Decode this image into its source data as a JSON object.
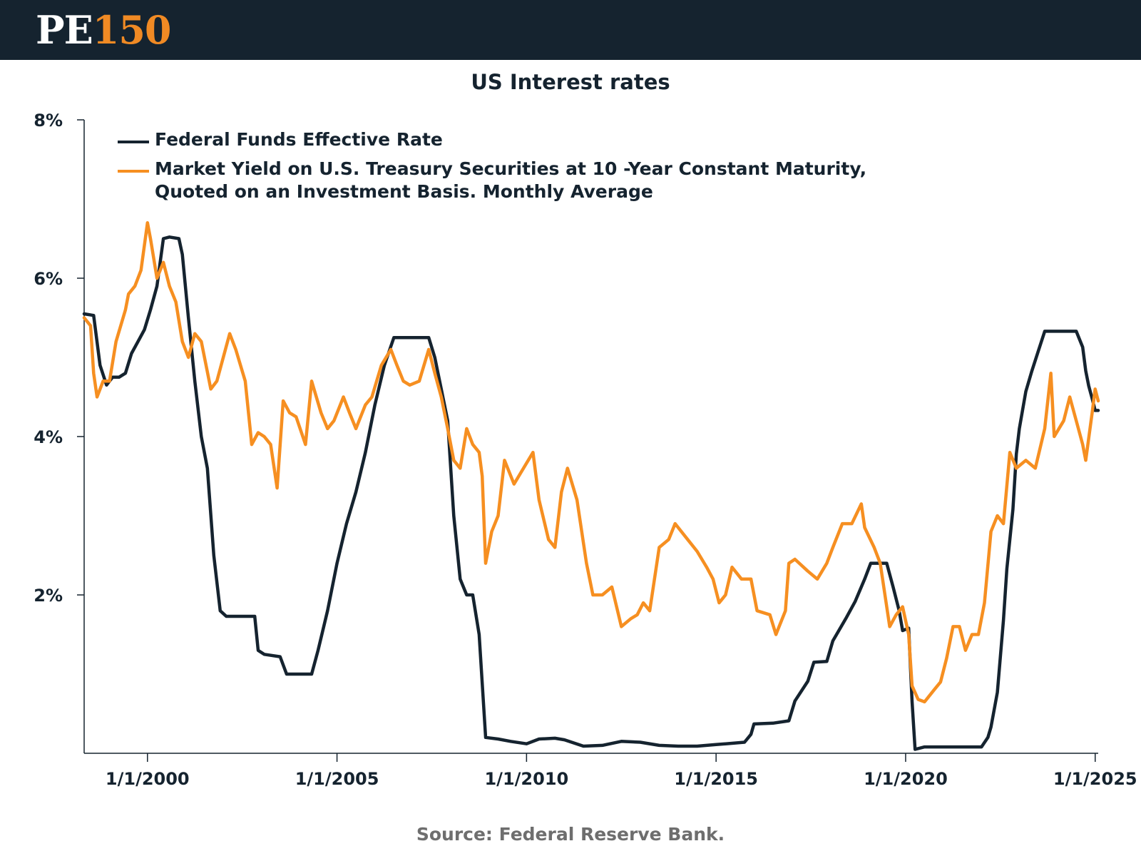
{
  "header": {
    "logo_pe": "PE",
    "logo_num": "150"
  },
  "source": "Source: Federal Reserve Bank.",
  "colors": {
    "header_bg": "#15232f",
    "fed_funds": "#15232f",
    "treasury_10y": "#f68f21"
  },
  "chart_data": {
    "type": "line",
    "title": "US Interest rates",
    "xlabel": "",
    "ylabel": "",
    "xlim": [
      1998.33,
      2025.08
    ],
    "ylim": [
      0,
      8
    ],
    "y_ticks": [
      2,
      4,
      6,
      8
    ],
    "y_tick_labels": [
      "2%",
      "4%",
      "6%",
      "8%"
    ],
    "x_ticks": [
      2000,
      2005,
      2010,
      2015,
      2020,
      2025
    ],
    "x_tick_labels": [
      "1/1/2000",
      "1/1/2005",
      "1/1/2010",
      "1/1/2015",
      "1/1/2020",
      "1/1/2025"
    ],
    "grid": false,
    "legend_position": "top-left",
    "series": [
      {
        "name": "Federal Funds Effective Rate",
        "color": "#15232f",
        "points": [
          [
            1998.33,
            5.55
          ],
          [
            1998.58,
            5.53
          ],
          [
            1998.75,
            4.9
          ],
          [
            1998.92,
            4.65
          ],
          [
            1999.08,
            4.75
          ],
          [
            1999.25,
            4.75
          ],
          [
            1999.42,
            4.8
          ],
          [
            1999.58,
            5.05
          ],
          [
            1999.75,
            5.2
          ],
          [
            1999.92,
            5.35
          ],
          [
            2000.08,
            5.6
          ],
          [
            2000.25,
            5.9
          ],
          [
            2000.42,
            6.5
          ],
          [
            2000.58,
            6.52
          ],
          [
            2000.83,
            6.5
          ],
          [
            2000.92,
            6.3
          ],
          [
            2001.08,
            5.5
          ],
          [
            2001.25,
            4.7
          ],
          [
            2001.42,
            4.0
          ],
          [
            2001.58,
            3.6
          ],
          [
            2001.75,
            2.5
          ],
          [
            2001.92,
            1.8
          ],
          [
            2002.08,
            1.73
          ],
          [
            2002.5,
            1.73
          ],
          [
            2002.83,
            1.73
          ],
          [
            2002.92,
            1.3
          ],
          [
            2003.08,
            1.25
          ],
          [
            2003.5,
            1.22
          ],
          [
            2003.67,
            1.0
          ],
          [
            2004.0,
            1.0
          ],
          [
            2004.33,
            1.0
          ],
          [
            2004.5,
            1.3
          ],
          [
            2004.75,
            1.8
          ],
          [
            2005.0,
            2.4
          ],
          [
            2005.25,
            2.9
          ],
          [
            2005.5,
            3.3
          ],
          [
            2005.75,
            3.8
          ],
          [
            2006.0,
            4.4
          ],
          [
            2006.25,
            4.9
          ],
          [
            2006.5,
            5.25
          ],
          [
            2006.75,
            5.25
          ],
          [
            2007.0,
            5.25
          ],
          [
            2007.42,
            5.25
          ],
          [
            2007.58,
            5.0
          ],
          [
            2007.75,
            4.6
          ],
          [
            2007.92,
            4.2
          ],
          [
            2008.08,
            3.0
          ],
          [
            2008.25,
            2.2
          ],
          [
            2008.42,
            2.0
          ],
          [
            2008.58,
            2.0
          ],
          [
            2008.75,
            1.5
          ],
          [
            2008.92,
            0.2
          ],
          [
            2009.25,
            0.18
          ],
          [
            2009.58,
            0.15
          ],
          [
            2010.0,
            0.12
          ],
          [
            2010.33,
            0.18
          ],
          [
            2010.75,
            0.19
          ],
          [
            2011.0,
            0.17
          ],
          [
            2011.5,
            0.09
          ],
          [
            2012.0,
            0.1
          ],
          [
            2012.5,
            0.15
          ],
          [
            2013.0,
            0.14
          ],
          [
            2013.5,
            0.1
          ],
          [
            2014.0,
            0.09
          ],
          [
            2014.5,
            0.09
          ],
          [
            2015.0,
            0.11
          ],
          [
            2015.75,
            0.14
          ],
          [
            2015.92,
            0.24
          ],
          [
            2016.0,
            0.37
          ],
          [
            2016.5,
            0.38
          ],
          [
            2016.92,
            0.41
          ],
          [
            2017.08,
            0.66
          ],
          [
            2017.42,
            0.91
          ],
          [
            2017.58,
            1.15
          ],
          [
            2017.92,
            1.16
          ],
          [
            2018.08,
            1.42
          ],
          [
            2018.42,
            1.7
          ],
          [
            2018.67,
            1.92
          ],
          [
            2018.92,
            2.2
          ],
          [
            2019.08,
            2.4
          ],
          [
            2019.5,
            2.4
          ],
          [
            2019.67,
            2.1
          ],
          [
            2019.83,
            1.8
          ],
          [
            2019.92,
            1.55
          ],
          [
            2020.08,
            1.58
          ],
          [
            2020.17,
            0.65
          ],
          [
            2020.25,
            0.05
          ],
          [
            2020.5,
            0.08
          ],
          [
            2021.0,
            0.08
          ],
          [
            2021.5,
            0.08
          ],
          [
            2022.0,
            0.08
          ],
          [
            2022.17,
            0.2
          ],
          [
            2022.25,
            0.33
          ],
          [
            2022.42,
            0.77
          ],
          [
            2022.58,
            1.68
          ],
          [
            2022.67,
            2.33
          ],
          [
            2022.83,
            3.08
          ],
          [
            2022.92,
            3.78
          ],
          [
            2023.0,
            4.1
          ],
          [
            2023.17,
            4.57
          ],
          [
            2023.33,
            4.83
          ],
          [
            2023.5,
            5.08
          ],
          [
            2023.67,
            5.33
          ],
          [
            2024.0,
            5.33
          ],
          [
            2024.5,
            5.33
          ],
          [
            2024.67,
            5.13
          ],
          [
            2024.75,
            4.83
          ],
          [
            2024.83,
            4.64
          ],
          [
            2024.92,
            4.48
          ],
          [
            2025.0,
            4.33
          ],
          [
            2025.08,
            4.33
          ]
        ]
      },
      {
        "name": "Market Yield on U.S. Treasury Securities at 10 -Year Constant Maturity, Quoted on an Investment Basis. Monthly Average",
        "color": "#f68f21",
        "points": [
          [
            1998.33,
            5.5
          ],
          [
            1998.5,
            5.4
          ],
          [
            1998.58,
            4.8
          ],
          [
            1998.67,
            4.5
          ],
          [
            1998.83,
            4.7
          ],
          [
            1999.0,
            4.7
          ],
          [
            1999.17,
            5.2
          ],
          [
            1999.42,
            5.6
          ],
          [
            1999.5,
            5.8
          ],
          [
            1999.67,
            5.9
          ],
          [
            1999.83,
            6.1
          ],
          [
            2000.0,
            6.7
          ],
          [
            2000.08,
            6.5
          ],
          [
            2000.25,
            6.0
          ],
          [
            2000.42,
            6.2
          ],
          [
            2000.58,
            5.9
          ],
          [
            2000.75,
            5.7
          ],
          [
            2000.92,
            5.2
          ],
          [
            2001.08,
            5.0
          ],
          [
            2001.25,
            5.3
          ],
          [
            2001.42,
            5.2
          ],
          [
            2001.67,
            4.6
          ],
          [
            2001.83,
            4.7
          ],
          [
            2002.0,
            5.0
          ],
          [
            2002.17,
            5.3
          ],
          [
            2002.33,
            5.1
          ],
          [
            2002.58,
            4.7
          ],
          [
            2002.75,
            3.9
          ],
          [
            2002.92,
            4.05
          ],
          [
            2003.08,
            4.0
          ],
          [
            2003.25,
            3.9
          ],
          [
            2003.42,
            3.35
          ],
          [
            2003.58,
            4.45
          ],
          [
            2003.75,
            4.3
          ],
          [
            2003.92,
            4.25
          ],
          [
            2004.17,
            3.9
          ],
          [
            2004.33,
            4.7
          ],
          [
            2004.58,
            4.3
          ],
          [
            2004.75,
            4.1
          ],
          [
            2004.92,
            4.2
          ],
          [
            2005.17,
            4.5
          ],
          [
            2005.33,
            4.3
          ],
          [
            2005.5,
            4.1
          ],
          [
            2005.75,
            4.4
          ],
          [
            2005.92,
            4.5
          ],
          [
            2006.17,
            4.9
          ],
          [
            2006.42,
            5.1
          ],
          [
            2006.58,
            4.9
          ],
          [
            2006.75,
            4.7
          ],
          [
            2006.92,
            4.65
          ],
          [
            2007.17,
            4.7
          ],
          [
            2007.42,
            5.1
          ],
          [
            2007.58,
            4.8
          ],
          [
            2007.75,
            4.5
          ],
          [
            2007.92,
            4.1
          ],
          [
            2008.08,
            3.7
          ],
          [
            2008.25,
            3.6
          ],
          [
            2008.42,
            4.1
          ],
          [
            2008.58,
            3.9
          ],
          [
            2008.75,
            3.8
          ],
          [
            2008.83,
            3.5
          ],
          [
            2008.92,
            2.4
          ],
          [
            2009.08,
            2.8
          ],
          [
            2009.25,
            3.0
          ],
          [
            2009.42,
            3.7
          ],
          [
            2009.67,
            3.4
          ],
          [
            2009.92,
            3.6
          ],
          [
            2010.17,
            3.8
          ],
          [
            2010.33,
            3.2
          ],
          [
            2010.58,
            2.7
          ],
          [
            2010.75,
            2.6
          ],
          [
            2010.92,
            3.3
          ],
          [
            2011.08,
            3.6
          ],
          [
            2011.33,
            3.2
          ],
          [
            2011.58,
            2.4
          ],
          [
            2011.75,
            2.0
          ],
          [
            2012.0,
            2.0
          ],
          [
            2012.25,
            2.1
          ],
          [
            2012.5,
            1.6
          ],
          [
            2012.75,
            1.7
          ],
          [
            2012.92,
            1.75
          ],
          [
            2013.08,
            1.9
          ],
          [
            2013.25,
            1.8
          ],
          [
            2013.5,
            2.6
          ],
          [
            2013.75,
            2.7
          ],
          [
            2013.92,
            2.9
          ],
          [
            2014.25,
            2.7
          ],
          [
            2014.5,
            2.55
          ],
          [
            2014.75,
            2.35
          ],
          [
            2014.92,
            2.2
          ],
          [
            2015.08,
            1.9
          ],
          [
            2015.25,
            2.0
          ],
          [
            2015.42,
            2.35
          ],
          [
            2015.67,
            2.2
          ],
          [
            2015.92,
            2.2
          ],
          [
            2016.08,
            1.8
          ],
          [
            2016.42,
            1.75
          ],
          [
            2016.58,
            1.5
          ],
          [
            2016.83,
            1.8
          ],
          [
            2016.92,
            2.4
          ],
          [
            2017.08,
            2.45
          ],
          [
            2017.42,
            2.3
          ],
          [
            2017.67,
            2.2
          ],
          [
            2017.92,
            2.4
          ],
          [
            2018.08,
            2.6
          ],
          [
            2018.33,
            2.9
          ],
          [
            2018.58,
            2.9
          ],
          [
            2018.83,
            3.15
          ],
          [
            2018.92,
            2.85
          ],
          [
            2019.17,
            2.6
          ],
          [
            2019.33,
            2.4
          ],
          [
            2019.58,
            1.6
          ],
          [
            2019.75,
            1.75
          ],
          [
            2019.92,
            1.85
          ],
          [
            2020.08,
            1.5
          ],
          [
            2020.17,
            0.85
          ],
          [
            2020.33,
            0.68
          ],
          [
            2020.5,
            0.65
          ],
          [
            2020.75,
            0.8
          ],
          [
            2020.92,
            0.9
          ],
          [
            2021.08,
            1.2
          ],
          [
            2021.25,
            1.6
          ],
          [
            2021.42,
            1.6
          ],
          [
            2021.58,
            1.3
          ],
          [
            2021.75,
            1.5
          ],
          [
            2021.92,
            1.5
          ],
          [
            2022.08,
            1.9
          ],
          [
            2022.25,
            2.8
          ],
          [
            2022.42,
            3.0
          ],
          [
            2022.58,
            2.9
          ],
          [
            2022.75,
            3.8
          ],
          [
            2022.92,
            3.6
          ],
          [
            2023.17,
            3.7
          ],
          [
            2023.42,
            3.6
          ],
          [
            2023.67,
            4.1
          ],
          [
            2023.83,
            4.8
          ],
          [
            2023.92,
            4.0
          ],
          [
            2024.17,
            4.2
          ],
          [
            2024.33,
            4.5
          ],
          [
            2024.5,
            4.2
          ],
          [
            2024.67,
            3.9
          ],
          [
            2024.75,
            3.7
          ],
          [
            2024.92,
            4.3
          ],
          [
            2025.0,
            4.6
          ],
          [
            2025.08,
            4.45
          ]
        ]
      }
    ]
  }
}
